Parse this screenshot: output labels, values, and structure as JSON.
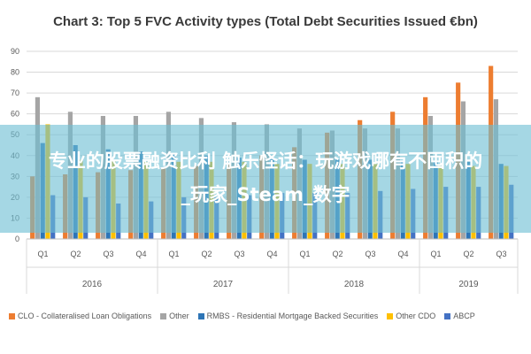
{
  "chart_data": {
    "type": "bar",
    "title": "Chart 3: Top 5 FVC Activity types (Total Debt Securities Issued €bn)",
    "ylim": [
      0,
      90
    ],
    "yticks": [
      0,
      10,
      20,
      30,
      40,
      50,
      60,
      70,
      80,
      90
    ],
    "categories": [
      "Q1",
      "Q2",
      "Q3",
      "Q4",
      "Q1",
      "Q2",
      "Q3",
      "Q4",
      "Q1",
      "Q2",
      "Q3",
      "Q4",
      "Q1",
      "Q2",
      "Q3"
    ],
    "year_groups": [
      {
        "label": "2016",
        "count": 4
      },
      {
        "label": "2017",
        "count": 4
      },
      {
        "label": "2018",
        "count": 4
      },
      {
        "label": "2019",
        "count": 3
      }
    ],
    "series": [
      {
        "name": "CLO - Collateralised Loan Obligations",
        "color": "#ED7D31",
        "values": [
          30,
          31,
          32,
          33,
          34,
          35,
          36,
          40,
          44,
          51,
          57,
          61,
          68,
          75,
          83
        ]
      },
      {
        "name": "Other",
        "color": "#A5A5A5",
        "values": [
          68,
          61,
          59,
          59,
          61,
          58,
          56,
          55,
          53,
          52,
          53,
          53,
          59,
          66,
          67
        ]
      },
      {
        "name": "RMBS - Residential Mortgage Backed Securities",
        "color": "#2E75B6",
        "values": [
          46,
          45,
          43,
          42,
          41,
          40,
          39,
          39,
          38,
          38,
          38,
          37,
          37,
          37,
          36
        ]
      },
      {
        "name": "Other CDO",
        "color": "#FFC000",
        "values": [
          55,
          38,
          38,
          37,
          37,
          37,
          37,
          36,
          36,
          36,
          36,
          36,
          35,
          35,
          35
        ]
      },
      {
        "name": "ABCP",
        "color": "#4472C4",
        "values": [
          21,
          20,
          17,
          18,
          20,
          20,
          21,
          22,
          22,
          22,
          23,
          24,
          25,
          25,
          26
        ]
      }
    ],
    "grid": true,
    "legend": "bottom"
  },
  "overlay": {
    "line1": "专业的股票融资比利 触乐怪话：玩游戏哪有不囤积的",
    "line2": "_玩家_Steam_数字"
  }
}
